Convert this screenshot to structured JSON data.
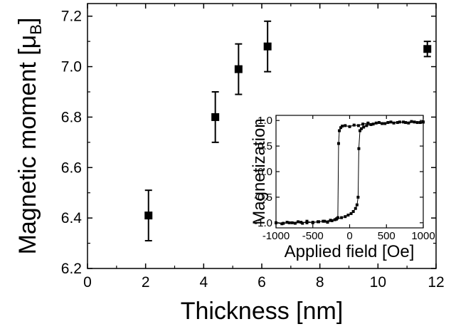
{
  "chart_data": [
    {
      "type": "scatter",
      "xlabel": "Thickness [nm]",
      "ylabel": "Magnetic moment [μB]",
      "ylabel_main": "Magnetic moment [",
      "ylabel_symbol": "μ",
      "ylabel_sub": "B",
      "ylabel_close": "]",
      "xlim": [
        0,
        12
      ],
      "ylim": [
        6.2,
        7.25
      ],
      "xticks": [
        "0",
        "2",
        "4",
        "6",
        "8",
        "10",
        "12"
      ],
      "yticks": [
        "6.2",
        "6.4",
        "6.6",
        "6.8",
        "7.0",
        "7.2"
      ],
      "marker": "square",
      "error_bars": true,
      "points": [
        {
          "x": 2.1,
          "y": 6.41,
          "err": 0.1
        },
        {
          "x": 4.4,
          "y": 6.8,
          "err": 0.1
        },
        {
          "x": 5.2,
          "y": 6.99,
          "err": 0.1
        },
        {
          "x": 6.2,
          "y": 7.08,
          "err": 0.1
        },
        {
          "x": 11.7,
          "y": 7.07,
          "err": 0.03
        }
      ]
    },
    {
      "type": "line",
      "role": "inset",
      "xlabel": "Applied field [Oe]",
      "ylabel": "Magnetization",
      "xlim": [
        -1000,
        1000
      ],
      "ylim": [
        -1.1,
        1.1
      ],
      "xticks": [
        "-1000",
        "-500",
        "0",
        "500",
        "1000"
      ],
      "yticks": [
        "-1.0",
        "-0.5",
        "0.0",
        "0.5",
        "1.0"
      ],
      "marker": "square",
      "series": [
        {
          "points": [
            [
              -1000,
              -1.0
            ],
            [
              -920,
              -1.02
            ],
            [
              -850,
              -0.99
            ],
            [
              -780,
              -1.0
            ],
            [
              -700,
              -0.98
            ],
            [
              -640,
              -1.01
            ],
            [
              -580,
              -0.97
            ],
            [
              -500,
              -1.0
            ],
            [
              -430,
              -0.98
            ],
            [
              -360,
              -0.97
            ],
            [
              -300,
              -0.99
            ],
            [
              -240,
              -0.96
            ],
            [
              -200,
              -0.94
            ],
            [
              -175,
              -0.92
            ],
            [
              -160,
              -0.9
            ],
            [
              -150,
              0.55
            ],
            [
              -140,
              0.8
            ],
            [
              -120,
              0.86
            ],
            [
              -100,
              0.89
            ],
            [
              -60,
              0.9
            ],
            [
              0,
              0.88
            ],
            [
              60,
              0.91
            ],
            [
              120,
              0.9
            ],
            [
              180,
              0.93
            ],
            [
              250,
              0.95
            ],
            [
              320,
              0.93
            ],
            [
              400,
              0.96
            ],
            [
              480,
              0.94
            ],
            [
              560,
              0.97
            ],
            [
              650,
              0.96
            ],
            [
              730,
              0.97
            ],
            [
              800,
              0.95
            ],
            [
              880,
              0.97
            ],
            [
              960,
              0.96
            ],
            [
              1000,
              0.97
            ]
          ]
        },
        {
          "points": [
            [
              1000,
              0.97
            ],
            [
              920,
              0.96
            ],
            [
              840,
              0.98
            ],
            [
              760,
              0.96
            ],
            [
              680,
              0.97
            ],
            [
              600,
              0.95
            ],
            [
              520,
              0.96
            ],
            [
              440,
              0.94
            ],
            [
              360,
              0.95
            ],
            [
              290,
              0.92
            ],
            [
              230,
              0.9
            ],
            [
              190,
              0.87
            ],
            [
              160,
              0.84
            ],
            [
              140,
              0.8
            ],
            [
              125,
              0.45
            ],
            [
              115,
              -0.5
            ],
            [
              100,
              -0.65
            ],
            [
              80,
              -0.72
            ],
            [
              50,
              -0.78
            ],
            [
              20,
              -0.82
            ],
            [
              -20,
              -0.85
            ],
            [
              -60,
              -0.88
            ],
            [
              -110,
              -0.9
            ],
            [
              -180,
              -0.93
            ],
            [
              -260,
              -0.95
            ],
            [
              -340,
              -0.97
            ],
            [
              -420,
              -0.98
            ],
            [
              -500,
              -0.99
            ],
            [
              -580,
              -1.0
            ],
            [
              -660,
              -0.99
            ],
            [
              -740,
              -1.01
            ],
            [
              -820,
              -1.0
            ],
            [
              -900,
              -1.01
            ],
            [
              -1000,
              -1.0
            ]
          ]
        }
      ]
    }
  ]
}
